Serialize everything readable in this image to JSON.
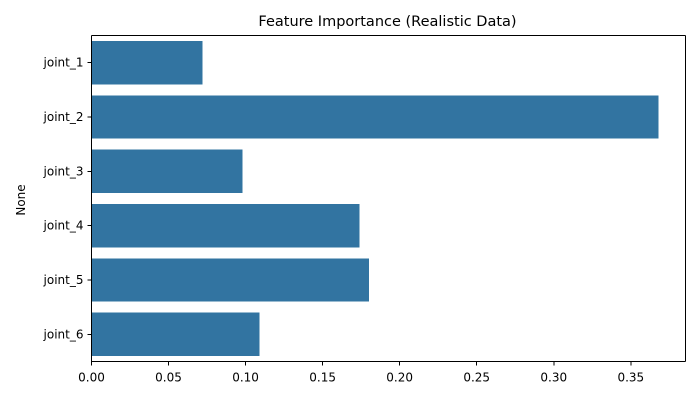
{
  "chart_data": {
    "type": "bar",
    "orientation": "horizontal",
    "title": "Feature Importance (Realistic Data)",
    "xlabel": "",
    "ylabel": "None",
    "categories": [
      "joint_1",
      "joint_2",
      "joint_3",
      "joint_4",
      "joint_5",
      "joint_6"
    ],
    "values": [
      0.072,
      0.368,
      0.098,
      0.174,
      0.18,
      0.109
    ],
    "xlim": [
      0,
      0.3855
    ],
    "xticks": [
      0.0,
      0.05,
      0.1,
      0.15,
      0.2,
      0.25,
      0.3,
      0.35
    ],
    "xtick_labels": [
      "0.00",
      "0.05",
      "0.10",
      "0.15",
      "0.20",
      "0.25",
      "0.30",
      "0.35"
    ],
    "bar_color": "#3274a1",
    "grid": false,
    "legend": "none"
  }
}
